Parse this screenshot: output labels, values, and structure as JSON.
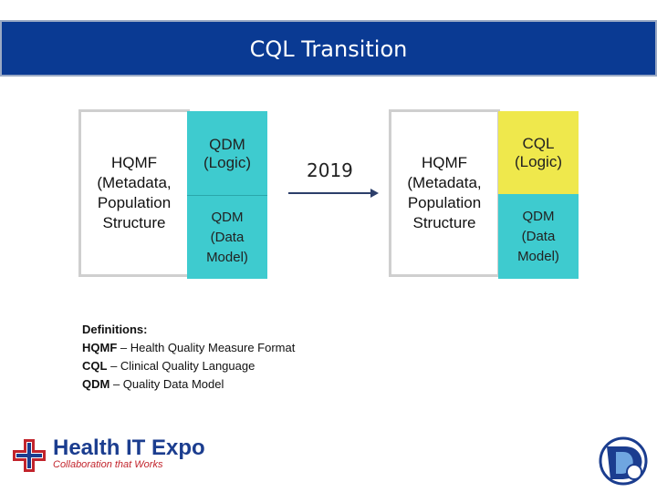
{
  "title": "CQL Transition",
  "left": {
    "hqmf": "HQMF\n(Metadata,\nPopulation\nStructure",
    "logic": "QDM\n(Logic)",
    "model": "QDM\n(Data\nModel)"
  },
  "arrow_label": "2019",
  "right": {
    "hqmf": "HQMF\n(Metadata,\nPopulation\nStructure",
    "logic": "CQL\n(Logic)",
    "model": "QDM\n(Data\nModel)"
  },
  "definitions": {
    "heading": "Definitions:",
    "items": [
      {
        "term": "HQMF",
        "text": " – Health Quality Measure Format"
      },
      {
        "term": "CQL",
        "text": " – Clinical Quality Language"
      },
      {
        "term": "QDM",
        "text": " – Quality Data Model"
      }
    ]
  },
  "footer": {
    "logo_name": "Health IT Expo",
    "logo_tagline": "Collaboration that Works"
  },
  "colors": {
    "header": "#0a3a93",
    "teal": "#3ecbcf",
    "yellow": "#efe84c"
  }
}
